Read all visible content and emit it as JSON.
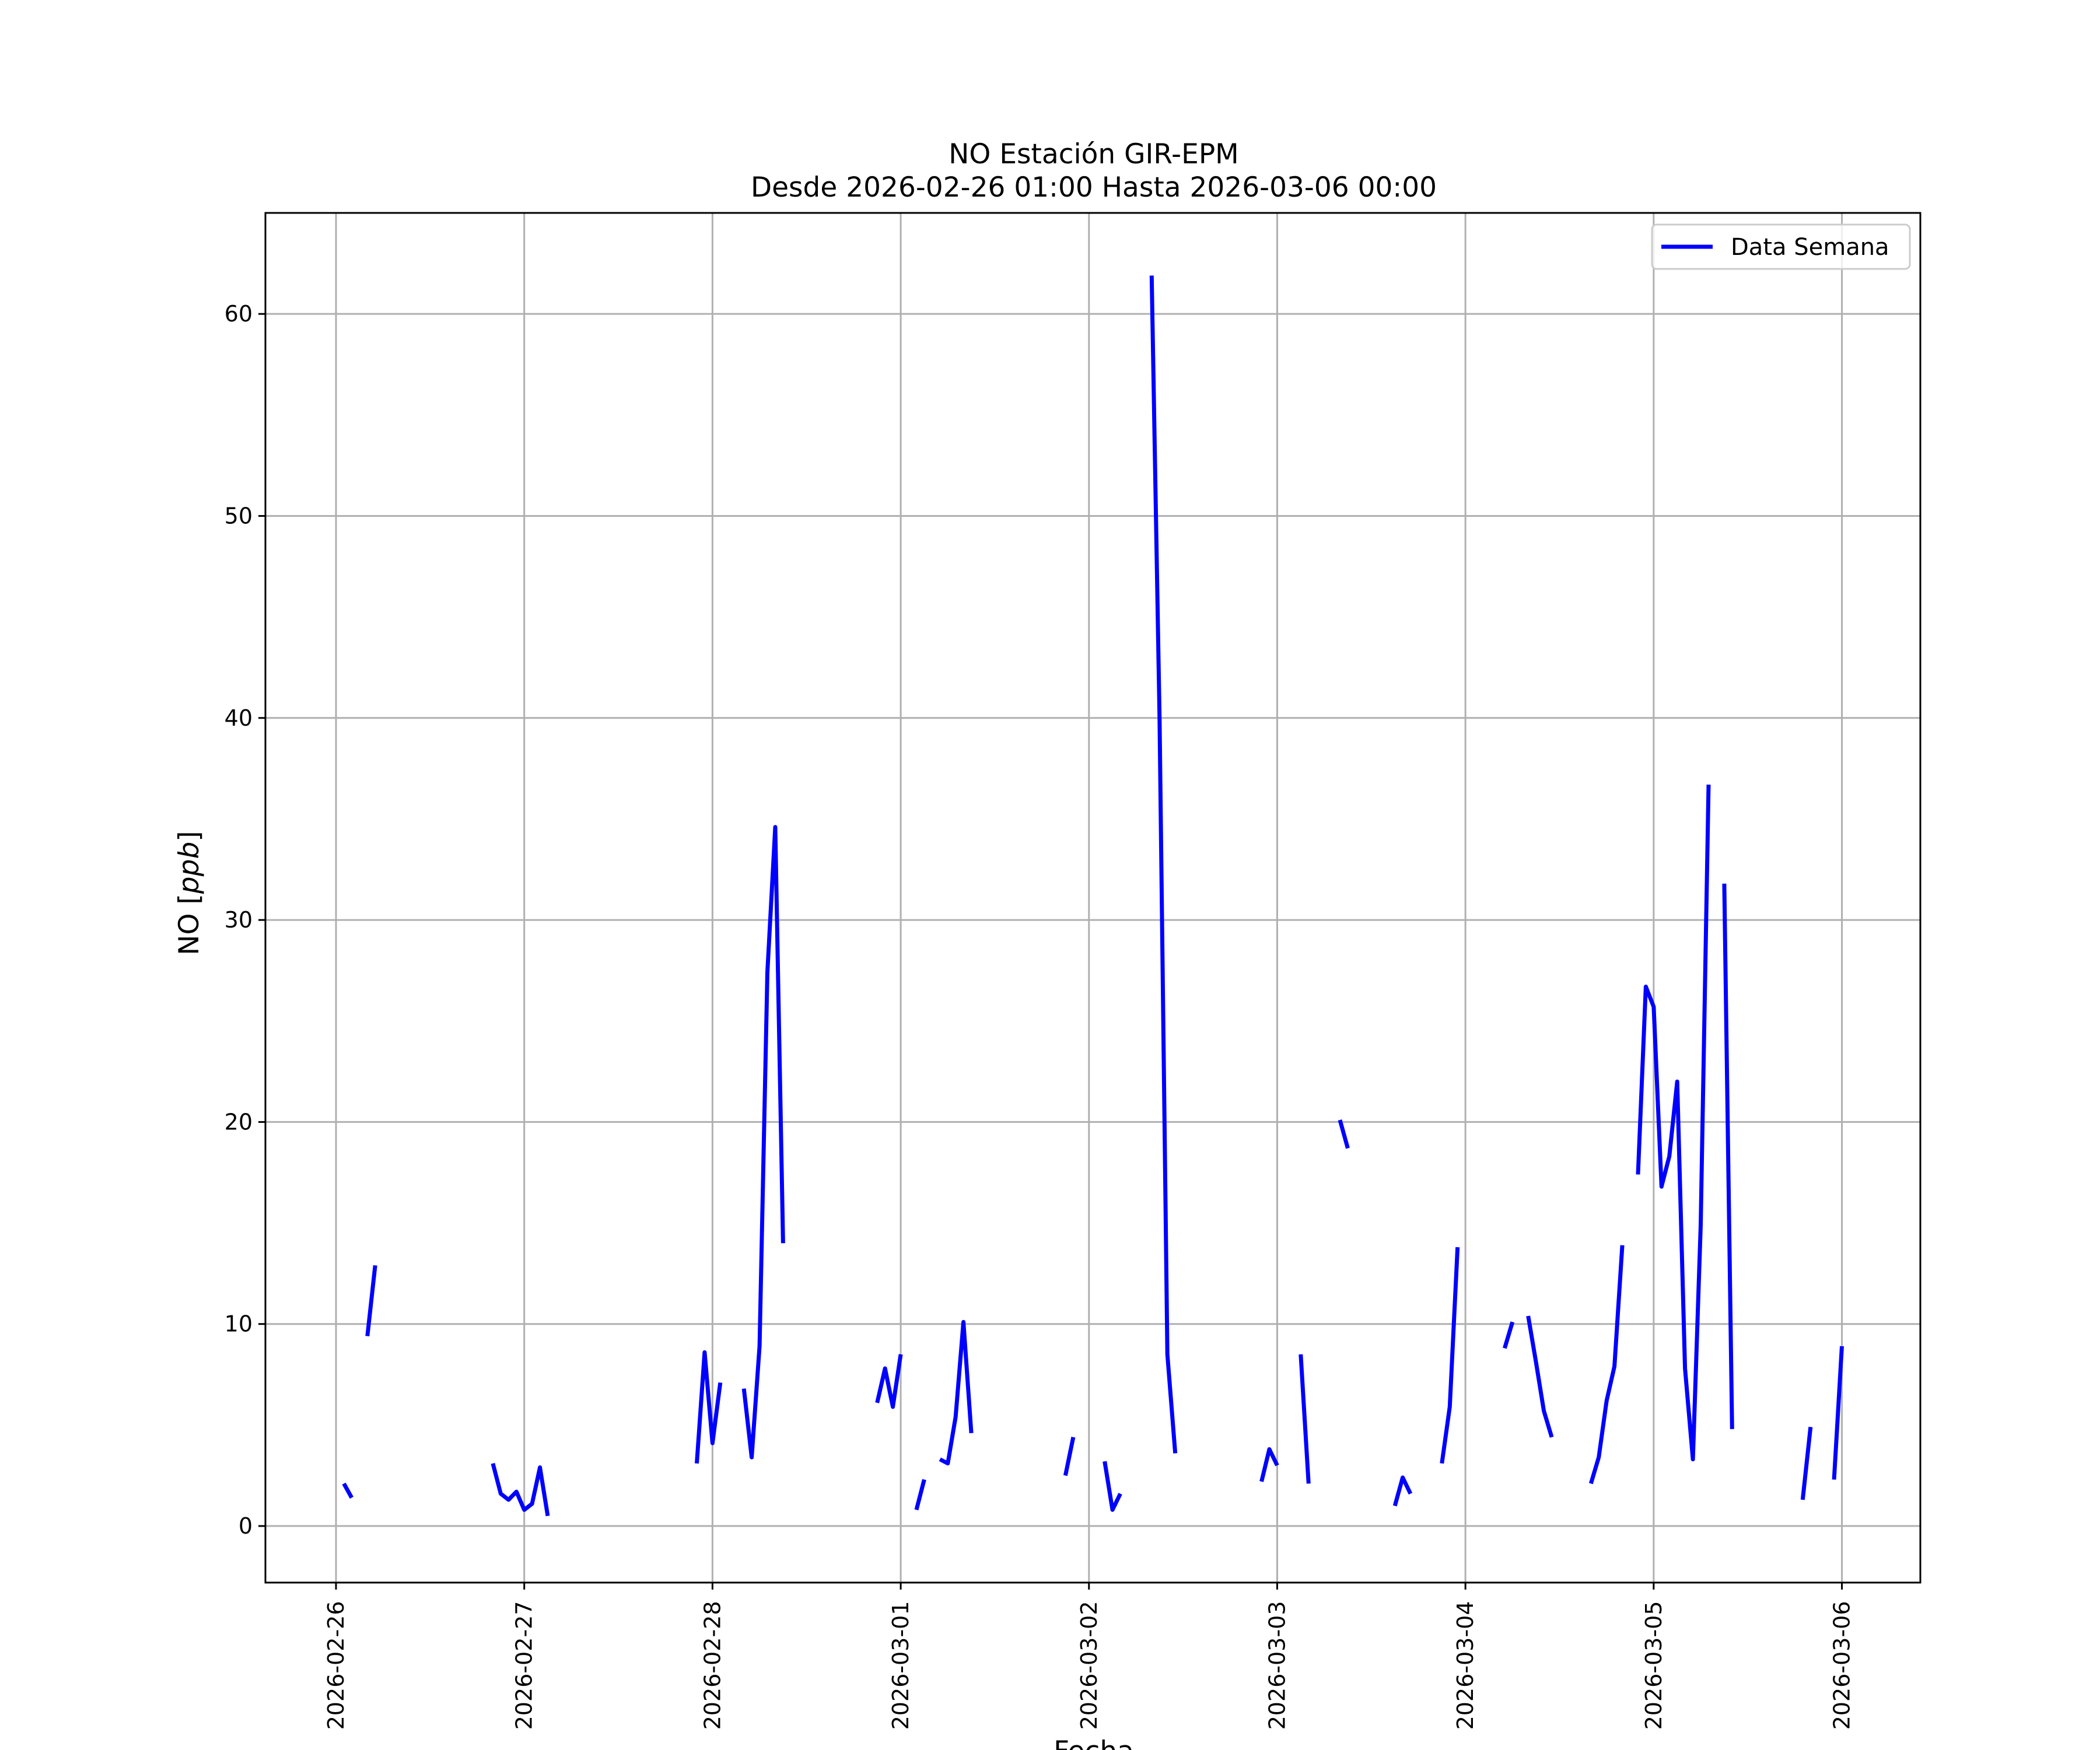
{
  "chart_data": {
    "type": "line",
    "title": "NO Estación GIR-EPM",
    "subtitle": "Desde 2026-02-26 01:00 Hasta 2026-03-06 00:00",
    "xlabel": "Fecha",
    "ylabel": "NO [ppb]",
    "ylabel_main": "NO [",
    "ylabel_unit": "ppb",
    "ylabel_close": "]",
    "xlim": [
      "2026-02-25 15:00",
      "2026-03-06 10:00"
    ],
    "ylim": [
      -2.8,
      65
    ],
    "x_ticks": [
      "2026-02-26",
      "2026-02-27",
      "2026-02-28",
      "2026-03-01",
      "2026-03-02",
      "2026-03-03",
      "2026-03-04",
      "2026-03-05",
      "2026-03-06"
    ],
    "y_ticks": [
      0,
      10,
      20,
      30,
      40,
      50,
      60
    ],
    "grid": true,
    "legend": {
      "position": "top-right",
      "entries": [
        "Data Semana"
      ]
    },
    "series": [
      {
        "name": "Data Semana",
        "color": "#0000ff",
        "segments": [
          [
            [
              "2026-02-26 01:00",
              2.1
            ],
            [
              "2026-02-26 02:00",
              1.4
            ]
          ],
          [
            [
              "2026-02-26 04:00",
              9.4
            ],
            [
              "2026-02-26 05:00",
              12.9
            ]
          ],
          [
            [
              "2026-02-26 20:00",
              3.1
            ],
            [
              "2026-02-26 21:00",
              1.6
            ],
            [
              "2026-02-26 22:00",
              1.3
            ],
            [
              "2026-02-26 23:00",
              1.7
            ],
            [
              "2026-02-27 00:00",
              0.8
            ],
            [
              "2026-02-27 01:00",
              1.1
            ],
            [
              "2026-02-27 02:00",
              2.9
            ],
            [
              "2026-02-27 03:00",
              0.5
            ]
          ],
          [
            [
              "2026-02-27 22:00",
              3.1
            ],
            [
              "2026-02-27 23:00",
              8.6
            ],
            [
              "2026-02-28 00:00",
              4.1
            ],
            [
              "2026-02-28 01:00",
              7.1
            ]
          ],
          [
            [
              "2026-02-28 04:00",
              6.8
            ],
            [
              "2026-02-28 05:00",
              3.4
            ],
            [
              "2026-02-28 06:00",
              8.9
            ],
            [
              "2026-02-28 07:00",
              27.4
            ],
            [
              "2026-02-28 08:00",
              34.6
            ],
            [
              "2026-02-28 09:00",
              14.0
            ]
          ],
          [
            [
              "2026-02-28 21:00",
              6.1
            ],
            [
              "2026-02-28 22:00",
              7.8
            ],
            [
              "2026-02-28 23:00",
              5.9
            ],
            [
              "2026-03-01 00:00",
              8.5
            ]
          ],
          [
            [
              "2026-03-01 02:00",
              0.8
            ],
            [
              "2026-03-01 03:00",
              2.3
            ]
          ],
          [
            [
              "2026-03-01 05:00",
              3.3
            ],
            [
              "2026-03-01 06:00",
              3.1
            ],
            [
              "2026-03-01 07:00",
              5.4
            ],
            [
              "2026-03-01 08:00",
              10.1
            ],
            [
              "2026-03-01 09:00",
              4.6
            ]
          ],
          [
            [
              "2026-03-01 21:00",
              2.5
            ],
            [
              "2026-03-01 22:00",
              4.4
            ]
          ],
          [
            [
              "2026-03-02 02:00",
              3.2
            ],
            [
              "2026-03-02 03:00",
              0.8
            ],
            [
              "2026-03-02 04:00",
              1.6
            ]
          ],
          [
            [
              "2026-03-02 08:00",
              61.9
            ],
            [
              "2026-03-02 09:00",
              40.0
            ],
            [
              "2026-03-02 10:00",
              8.5
            ],
            [
              "2026-03-02 11:00",
              3.6
            ]
          ],
          [
            [
              "2026-03-02 22:00",
              2.2
            ],
            [
              "2026-03-02 23:00",
              3.8
            ],
            [
              "2026-03-03 00:00",
              3.0
            ]
          ],
          [
            [
              "2026-03-03 03:00",
              8.5
            ],
            [
              "2026-03-03 04:00",
              2.1
            ]
          ],
          [
            [
              "2026-03-03 08:00",
              20.1
            ],
            [
              "2026-03-03 09:00",
              18.7
            ]
          ],
          [
            [
              "2026-03-03 15:00",
              1.0
            ],
            [
              "2026-03-03 16:00",
              2.4
            ],
            [
              "2026-03-03 17:00",
              1.6
            ]
          ],
          [
            [
              "2026-03-03 21:00",
              3.1
            ],
            [
              "2026-03-03 22:00",
              5.9
            ],
            [
              "2026-03-03 23:00",
              13.8
            ]
          ],
          [
            [
              "2026-03-04 05:00",
              8.8
            ],
            [
              "2026-03-04 06:00",
              10.1
            ]
          ],
          [
            [
              "2026-03-04 08:00",
              10.4
            ],
            [
              "2026-03-04 09:00",
              8.1
            ],
            [
              "2026-03-04 10:00",
              5.7
            ],
            [
              "2026-03-04 11:00",
              4.4
            ]
          ],
          [
            [
              "2026-03-04 16:00",
              2.1
            ],
            [
              "2026-03-04 17:00",
              3.4
            ],
            [
              "2026-03-04 18:00",
              6.2
            ],
            [
              "2026-03-04 19:00",
              7.9
            ],
            [
              "2026-03-04 20:00",
              13.9
            ]
          ],
          [
            [
              "2026-03-04 22:00",
              17.4
            ],
            [
              "2026-03-04 23:00",
              26.7
            ],
            [
              "2026-03-05 00:00",
              25.7
            ],
            [
              "2026-03-05 01:00",
              16.8
            ],
            [
              "2026-03-05 02:00",
              18.3
            ],
            [
              "2026-03-05 03:00",
              22.0
            ],
            [
              "2026-03-05 04:00",
              7.8
            ],
            [
              "2026-03-05 05:00",
              3.3
            ],
            [
              "2026-03-05 06:00",
              14.9
            ],
            [
              "2026-03-05 07:00",
              36.7
            ]
          ],
          [
            [
              "2026-03-05 09:00",
              31.8
            ],
            [
              "2026-03-05 10:00",
              4.8
            ]
          ],
          [
            [
              "2026-03-05 19:00",
              1.3
            ],
            [
              "2026-03-05 20:00",
              4.9
            ]
          ],
          [
            [
              "2026-03-05 23:00",
              2.3
            ],
            [
              "2026-03-06 00:00",
              8.9
            ]
          ]
        ]
      }
    ]
  }
}
